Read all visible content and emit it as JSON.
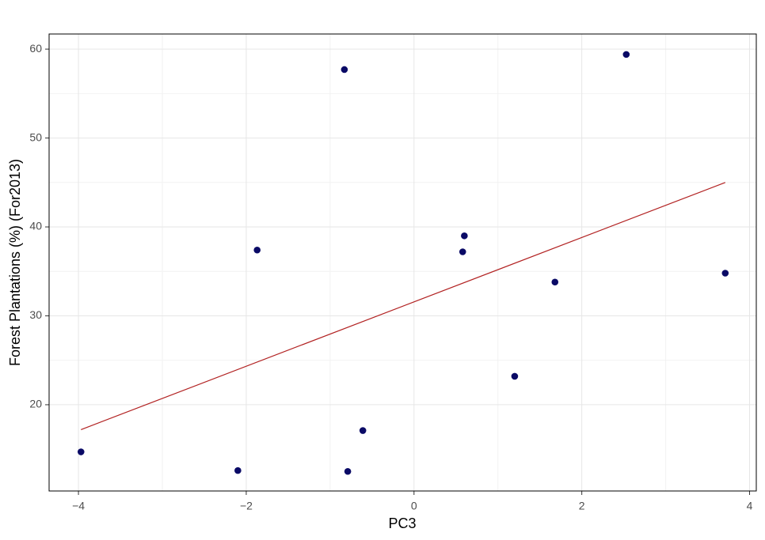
{
  "chart_data": {
    "type": "scatter",
    "x_label": "PC3",
    "y_label": "Forest Plantations (%) (For2013)",
    "x": [
      -3.97,
      -2.1,
      -1.87,
      -0.83,
      -0.79,
      -0.61,
      0.58,
      0.6,
      1.2,
      1.68,
      2.53,
      3.71
    ],
    "values": [
      14.7,
      12.6,
      37.4,
      57.7,
      12.5,
      17.1,
      37.2,
      39.0,
      23.2,
      33.8,
      59.4,
      34.8
    ],
    "color": "#0a0a66",
    "trend": {
      "x": [
        -3.97,
        3.71
      ],
      "values": [
        17.2,
        45.0
      ],
      "color": "#b22222"
    },
    "xlim": [
      -4.35,
      4.08
    ],
    "ylim": [
      10.3,
      61.7
    ],
    "xticks": [
      {
        "value": -4,
        "label": "−4"
      },
      {
        "value": -2,
        "label": "−2"
      },
      0,
      2,
      4
    ],
    "yticks": [
      20,
      30,
      40,
      50,
      60
    ],
    "grid": true
  }
}
